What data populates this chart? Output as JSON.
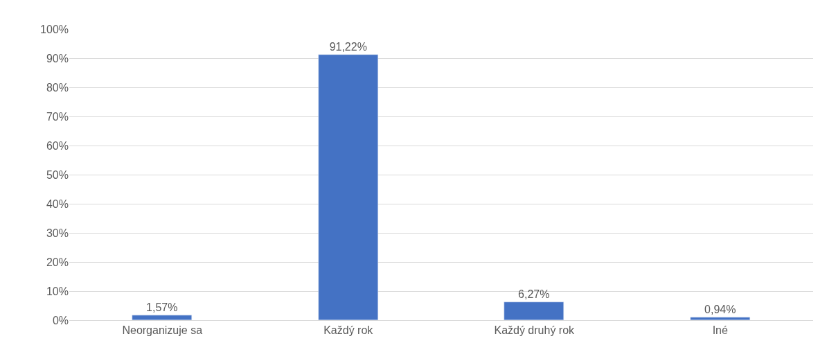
{
  "chart_data": {
    "type": "bar",
    "categories": [
      "Neorganizuje sa",
      "Každý rok",
      "Každý druhý rok",
      "Iné"
    ],
    "values": [
      1.57,
      91.22,
      6.27,
      0.94
    ],
    "value_labels": [
      "1,57%",
      "91,22%",
      "6,27%",
      "0,94%"
    ],
    "color": "#4472c4",
    "ylim": [
      0,
      100
    ],
    "yticks": [
      {
        "value": 0,
        "label": "0%"
      },
      {
        "value": 10,
        "label": "10%"
      },
      {
        "value": 20,
        "label": "20%"
      },
      {
        "value": 30,
        "label": "30%"
      },
      {
        "value": 40,
        "label": "40%"
      },
      {
        "value": 50,
        "label": "50%"
      },
      {
        "value": 60,
        "label": "60%"
      },
      {
        "value": 70,
        "label": "70%"
      },
      {
        "value": 80,
        "label": "80%"
      },
      {
        "value": 90,
        "label": "90%"
      },
      {
        "value": 100,
        "label": "100%"
      }
    ],
    "grid": "y",
    "legend": false
  }
}
